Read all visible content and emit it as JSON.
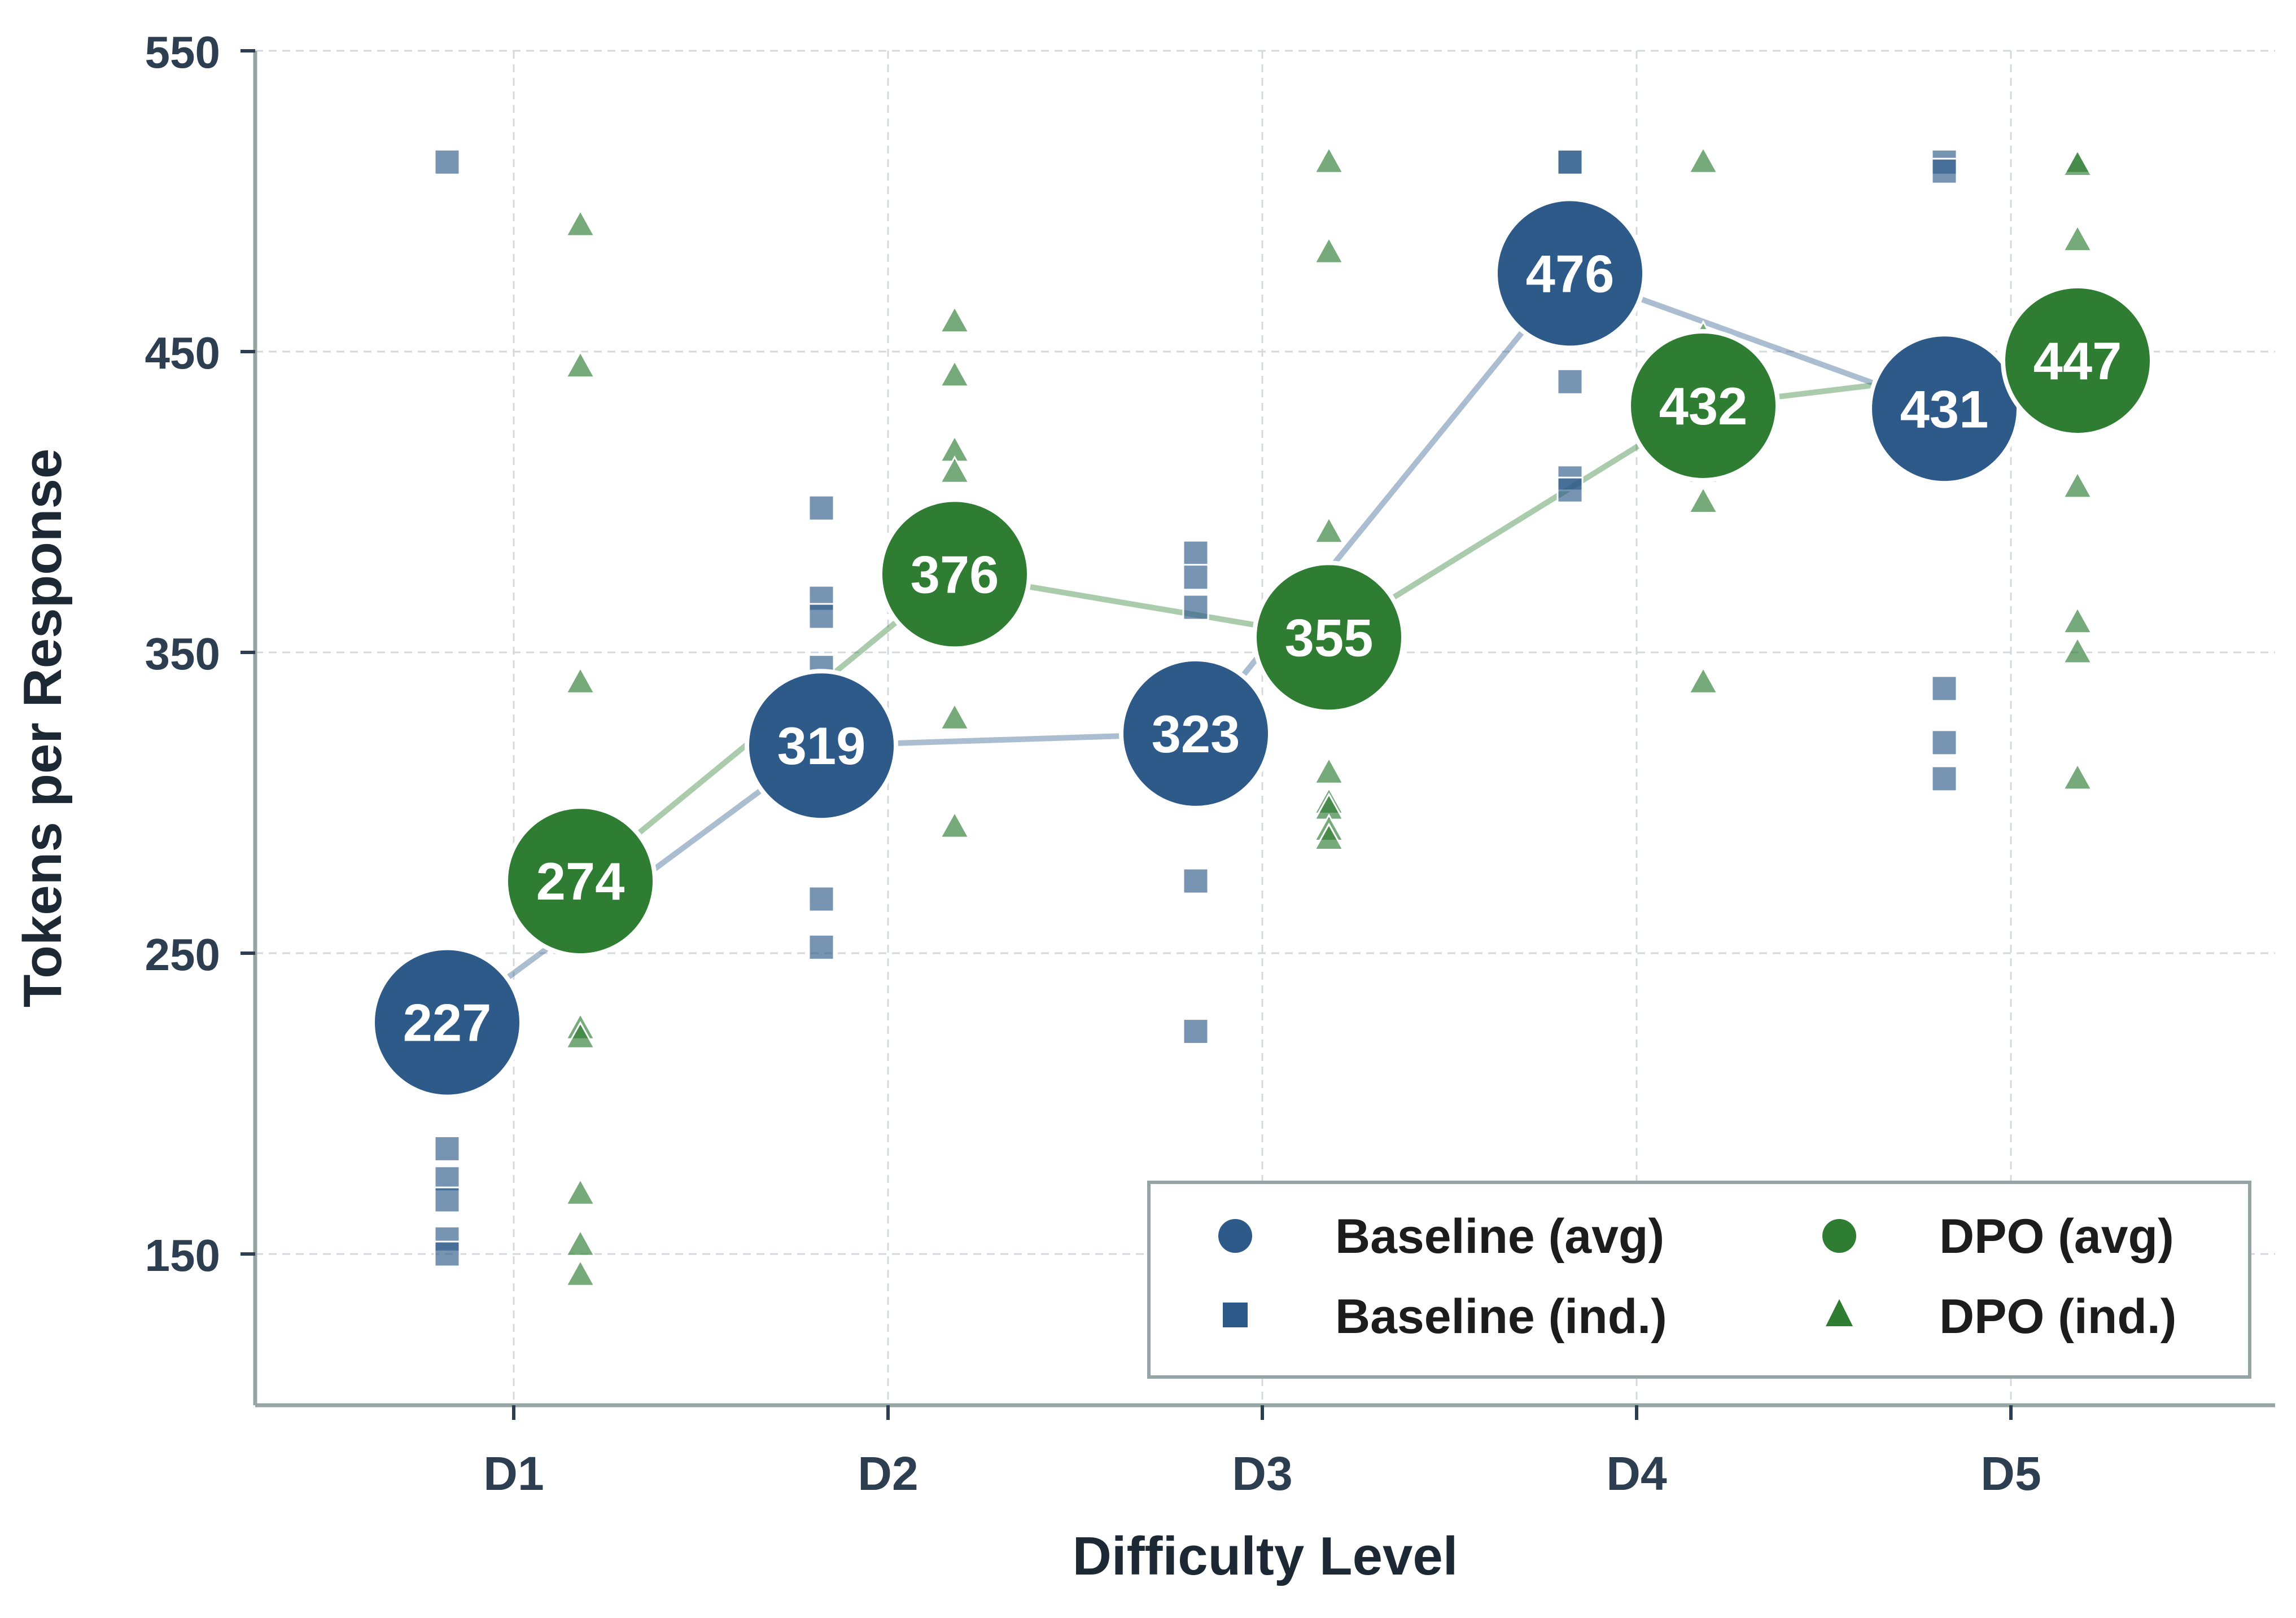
{
  "chart_data": {
    "type": "scatter",
    "title": "",
    "xlabel": "Difficulty Level",
    "ylabel": "Tokens per Response",
    "categories": [
      "D1",
      "D2",
      "D3",
      "D4",
      "D5"
    ],
    "ylim": [
      100,
      550
    ],
    "yticks": [
      150,
      250,
      350,
      450,
      550
    ],
    "grid": true,
    "legend_position": "bottom-right",
    "series": [
      {
        "name": "Baseline (avg)",
        "kind": "average",
        "color": "#2e5a8a",
        "values": [
          227,
          319,
          323,
          476,
          431
        ]
      },
      {
        "name": "DPO (avg)",
        "kind": "average",
        "color": "#2e7d32",
        "values": [
          274,
          376,
          355,
          432,
          447
        ]
      },
      {
        "name": "Baseline (ind.)",
        "kind": "individual",
        "color": "#2e5a8a",
        "points": [
          [
            513,
            240,
            185,
            175,
            168,
            155,
            150
          ],
          [
            398,
            368,
            362,
            300,
            268,
            252,
            345
          ],
          [
            383,
            375,
            365,
            340,
            310,
            274,
            224
          ],
          [
            513,
            484,
            468,
            440,
            408,
            404,
            513
          ],
          [
            513,
            510,
            448,
            432,
            338,
            320,
            308
          ]
        ]
      },
      {
        "name": "DPO (ind.)",
        "kind": "individual",
        "color": "#2e7d32",
        "points": [
          [
            492,
            445,
            340,
            290,
            255,
            225,
            222,
            170,
            153,
            143
          ],
          [
            460,
            442,
            417,
            410,
            365,
            360,
            328,
            292
          ],
          [
            513,
            483,
            390,
            345,
            310,
            300,
            298,
            291,
            288
          ],
          [
            513,
            455,
            440,
            420,
            410,
            400,
            340
          ],
          [
            513,
            512,
            487,
            405,
            360,
            350,
            308
          ]
        ]
      }
    ],
    "legend": {
      "baseline_avg": "Baseline (avg)",
      "dpo_avg": "DPO (avg)",
      "baseline_ind": "Baseline (ind.)",
      "dpo_ind": "DPO (ind.)"
    }
  }
}
